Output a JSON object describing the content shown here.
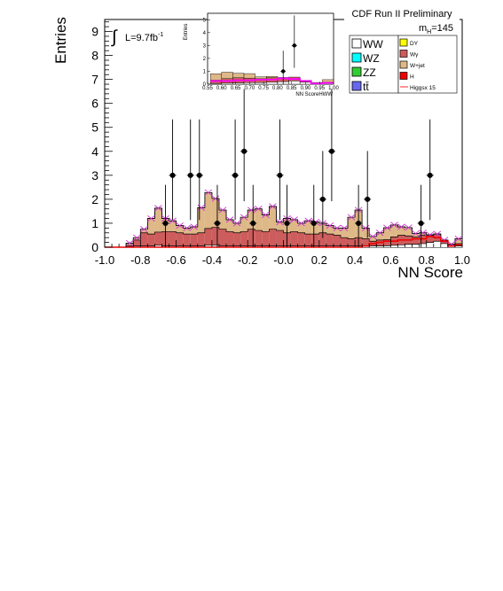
{
  "chart_data": {
    "type": "bar",
    "title": "CDF Run II Preliminary",
    "xlabel": "NN Score",
    "ylabel": "Entries",
    "xlim": [
      -1.0,
      1.0
    ],
    "ylim": [
      0,
      9.5
    ],
    "x_tick_labels": [
      "-1.0",
      "-0.8",
      "-0.6",
      "-0.4",
      "-0.2",
      "-0.0",
      "0.2",
      "0.4",
      "0.6",
      "0.8",
      "1.0"
    ],
    "y_tick_labels": [
      "0",
      "1",
      "2",
      "3",
      "4",
      "5",
      "6",
      "7",
      "8",
      "9"
    ],
    "luminosity_label_prefix": "L=9.7fb",
    "luminosity_label_exponent": "-1",
    "mass_label": "m",
    "mass_label_sub": "H",
    "mass_label_value": "=145",
    "bin_edges": [
      -1.0,
      -0.96,
      -0.92,
      -0.88,
      -0.84,
      -0.8,
      -0.76,
      -0.72,
      -0.68,
      -0.64,
      -0.6,
      -0.56,
      -0.52,
      -0.48,
      -0.44,
      -0.4,
      -0.36,
      -0.32,
      -0.28,
      -0.24,
      -0.2,
      -0.16,
      -0.12,
      -0.08,
      -0.04,
      0.0,
      0.04,
      0.08,
      0.12,
      0.16,
      0.2,
      0.24,
      0.28,
      0.32,
      0.36,
      0.4,
      0.44,
      0.48,
      0.52,
      0.56,
      0.6,
      0.64,
      0.68,
      0.72,
      0.76,
      0.8,
      0.84,
      0.88,
      0.92,
      0.96,
      1.0
    ],
    "series": [
      {
        "name": "WW",
        "color": "#ffffff",
        "values": [
          0,
          0,
          0,
          0.02,
          0.05,
          0.05,
          0.05,
          0.08,
          0.05,
          0.05,
          0.05,
          0.05,
          0.05,
          0.05,
          0.08,
          0.08,
          0.05,
          0.05,
          0.05,
          0.05,
          0.05,
          0.05,
          0.05,
          0.05,
          0.05,
          0.05,
          0.05,
          0.05,
          0.05,
          0.05,
          0.05,
          0.05,
          0.05,
          0.05,
          0.05,
          0.05,
          0.05,
          0.05,
          0.05,
          0.06,
          0.08,
          0.1,
          0.12,
          0.12,
          0.15,
          0.2,
          0.25,
          0.15,
          0.03,
          0.05
        ]
      },
      {
        "name": "Wγ",
        "color": "#cd5c5c",
        "values": [
          0,
          0,
          0,
          0.05,
          0.25,
          0.55,
          0.5,
          0.55,
          0.6,
          0.6,
          0.55,
          0.5,
          0.5,
          0.55,
          0.7,
          0.75,
          0.7,
          0.6,
          0.55,
          0.6,
          0.7,
          0.65,
          0.6,
          0.7,
          0.65,
          0.55,
          0.6,
          0.55,
          0.5,
          0.5,
          0.55,
          0.5,
          0.45,
          0.35,
          0.3,
          0.35,
          0.3,
          0.2,
          0.25,
          0.25,
          0.35,
          0.4,
          0.35,
          0.3,
          0.35,
          0.3,
          0.3,
          0.15,
          0.05,
          0.1
        ]
      },
      {
        "name": "W+jet",
        "color": "#deb887",
        "values": [
          0,
          0,
          0,
          0.1,
          0.1,
          0.15,
          0.65,
          1.0,
          0.55,
          0.45,
          0.3,
          0.25,
          0.3,
          1.05,
          1.5,
          1.2,
          0.8,
          0.5,
          0.4,
          0.6,
          0.8,
          0.9,
          0.7,
          0.95,
          0.35,
          0.6,
          0.5,
          0.4,
          0.55,
          0.5,
          0.4,
          0.35,
          0.3,
          0.4,
          0.9,
          1.15,
          0.45,
          0.2,
          0.3,
          0.5,
          0.5,
          0.35,
          0.35,
          0.15,
          0.1,
          0.02,
          0,
          0,
          0.05,
          0.2
        ]
      },
      {
        "name": "DY",
        "color": "#ffff00",
        "values": [
          0,
          0,
          0,
          0,
          0,
          0,
          0,
          0,
          0,
          0,
          0,
          0,
          0,
          0,
          0,
          0,
          0,
          0,
          0,
          0,
          0,
          0,
          0,
          0,
          0,
          0,
          0,
          0,
          0,
          0,
          0,
          0,
          0,
          0,
          0,
          0,
          0,
          0,
          0,
          0,
          0,
          0,
          0,
          0,
          0,
          0,
          0,
          0,
          0,
          0
        ]
      }
    ],
    "legend_entries": [
      {
        "label": "WW",
        "color": "#ffffff"
      },
      {
        "label": "WZ",
        "color": "#00ffff"
      },
      {
        "label": "ZZ",
        "color": "#33cc33"
      },
      {
        "label": "tt̄",
        "color": "#6666ee"
      }
    ],
    "legend_entries_small": [
      {
        "label": "DY",
        "color": "#ffff00"
      },
      {
        "label": "Wγ",
        "color": "#cd5c5c"
      },
      {
        "label": "W+jet",
        "color": "#deb887"
      },
      {
        "label": "H",
        "color": "#ee0000"
      },
      {
        "label": "Higgsx 15",
        "color": "#ff6666",
        "is_line": true
      }
    ],
    "higgs_line": [
      0,
      0,
      0,
      0,
      0,
      0,
      0,
      0,
      0,
      0,
      0,
      0,
      0,
      0,
      0,
      0,
      0,
      0,
      0,
      0,
      0,
      0,
      0,
      0,
      0,
      0,
      0,
      0,
      0,
      0,
      0,
      0,
      0,
      0,
      0,
      0,
      0.05,
      0.15,
      0.2,
      0.25,
      0.25,
      0.3,
      0.3,
      0.35,
      0.35,
      0.45,
      0.4,
      0.25,
      0.05,
      0.1
    ],
    "data_points": [
      {
        "x": -0.66,
        "y": 1
      },
      {
        "x": -0.62,
        "y": 3
      },
      {
        "x": -0.52,
        "y": 3
      },
      {
        "x": -0.47,
        "y": 3
      },
      {
        "x": -0.37,
        "y": 1
      },
      {
        "x": -0.27,
        "y": 3
      },
      {
        "x": -0.22,
        "y": 4
      },
      {
        "x": -0.17,
        "y": 1
      },
      {
        "x": -0.02,
        "y": 3
      },
      {
        "x": 0.02,
        "y": 1
      },
      {
        "x": 0.17,
        "y": 1
      },
      {
        "x": 0.22,
        "y": 2
      },
      {
        "x": 0.27,
        "y": 4
      },
      {
        "x": 0.42,
        "y": 1
      },
      {
        "x": 0.47,
        "y": 2
      },
      {
        "x": 0.77,
        "y": 1
      },
      {
        "x": 0.82,
        "y": 3
      }
    ],
    "inset": {
      "xlabel": "NN ScoreHWW",
      "ylabel": "Entries",
      "xlim": [
        0.55,
        1.0
      ],
      "ylim": [
        0,
        5.5
      ],
      "x_tick_labels": [
        "0.55",
        "0.60",
        "0.65",
        "0.70",
        "0.75",
        "0.80",
        "0.85",
        "0.90",
        "0.95",
        "1.00"
      ],
      "y_tick_labels": [
        "0",
        "1",
        "2",
        "3",
        "4",
        "5"
      ],
      "data_points": [
        {
          "x": 0.82,
          "y": 1
        },
        {
          "x": 0.86,
          "y": 3
        }
      ]
    }
  }
}
